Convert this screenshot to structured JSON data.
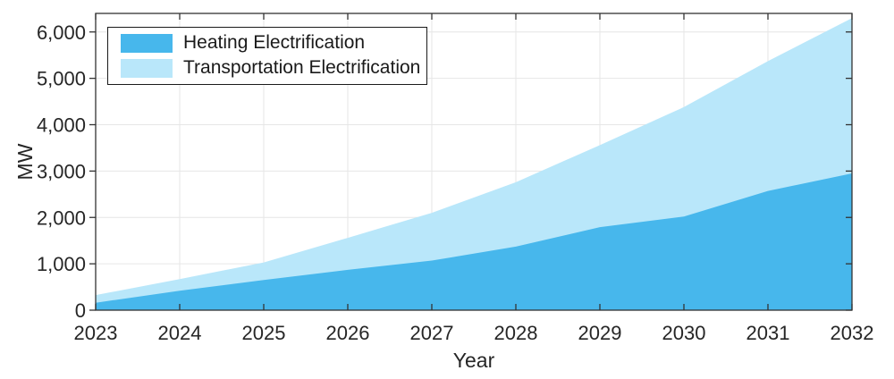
{
  "chart_data": {
    "type": "area",
    "stacked": true,
    "title": "",
    "xlabel": "Year",
    "ylabel": "MW",
    "x": [
      2023,
      2024,
      2025,
      2026,
      2027,
      2028,
      2029,
      2030,
      2031,
      2032
    ],
    "x_tick_labels": [
      "2023",
      "2024",
      "2025",
      "2026",
      "2027",
      "2028",
      "2029",
      "2030",
      "2031",
      "2032"
    ],
    "series": [
      {
        "name": "Heating Electrification",
        "color": "#47b7ec",
        "values": [
          160,
          420,
          650,
          870,
          1070,
          1370,
          1790,
          2020,
          2570,
          2950
        ]
      },
      {
        "name": "Transportation Electrification",
        "color": "#b9e7fa",
        "values": [
          165,
          250,
          380,
          690,
          1030,
          1390,
          1770,
          2360,
          2800,
          3350
        ]
      }
    ],
    "ylim": [
      0,
      6400
    ],
    "y_ticks": [
      0,
      1000,
      2000,
      3000,
      4000,
      5000,
      6000
    ],
    "y_tick_labels": [
      "0",
      "1,000",
      "2,000",
      "3,000",
      "4,000",
      "5,000",
      "6,000"
    ],
    "grid": true,
    "legend_position": "top-left",
    "colors": {
      "axis": "#333333",
      "grid": "#e6e6e6",
      "background": "#ffffff",
      "legend_border": "#1a1a1a"
    }
  }
}
